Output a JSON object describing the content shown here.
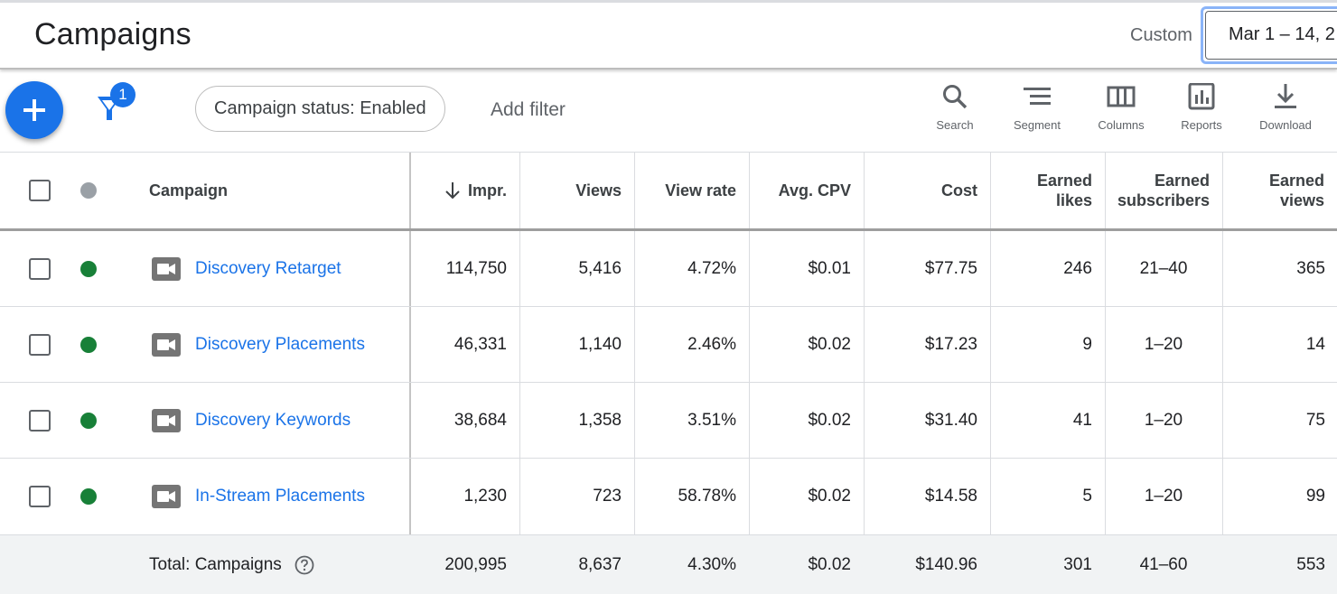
{
  "header": {
    "title": "Campaigns",
    "date_preset": "Custom",
    "date_range": "Mar 1 – 14, 2"
  },
  "toolbar": {
    "filter_count": "1",
    "chip_label": "Campaign status: Enabled",
    "add_filter": "Add filter",
    "tools": [
      {
        "label": "Search",
        "icon": "search-icon"
      },
      {
        "label": "Segment",
        "icon": "segment-icon"
      },
      {
        "label": "Columns",
        "icon": "columns-icon"
      },
      {
        "label": "Reports",
        "icon": "reports-icon"
      },
      {
        "label": "Download",
        "icon": "download-icon"
      }
    ]
  },
  "table": {
    "headers": {
      "campaign": "Campaign",
      "impr": "Impr.",
      "views": "Views",
      "view_rate": "View rate",
      "avg_cpv": "Avg. CPV",
      "cost": "Cost",
      "earned_likes_1": "Earned",
      "earned_likes_2": "likes",
      "earned_subs_1": "Earned",
      "earned_subs_2": "subscribers",
      "earned_views_1": "Earned",
      "earned_views_2": "views"
    },
    "rows": [
      {
        "name": "Discovery Retarget",
        "impr": "114,750",
        "views": "5,416",
        "view_rate": "4.72%",
        "avg_cpv": "$0.01",
        "cost": "$77.75",
        "likes": "246",
        "subs": "21–40",
        "earned_views": "365"
      },
      {
        "name": "Discovery Placements",
        "impr": "46,331",
        "views": "1,140",
        "view_rate": "2.46%",
        "avg_cpv": "$0.02",
        "cost": "$17.23",
        "likes": "9",
        "subs": "1–20",
        "earned_views": "14"
      },
      {
        "name": "Discovery Keywords",
        "impr": "38,684",
        "views": "1,358",
        "view_rate": "3.51%",
        "avg_cpv": "$0.02",
        "cost": "$31.40",
        "likes": "41",
        "subs": "1–20",
        "earned_views": "75"
      },
      {
        "name": "In-Stream Placements",
        "impr": "1,230",
        "views": "723",
        "view_rate": "58.78%",
        "avg_cpv": "$0.02",
        "cost": "$14.58",
        "likes": "5",
        "subs": "1–20",
        "earned_views": "99"
      }
    ],
    "total": {
      "label": "Total: Campaigns",
      "impr": "200,995",
      "views": "8,637",
      "view_rate": "4.30%",
      "avg_cpv": "$0.02",
      "cost": "$140.96",
      "likes": "301",
      "subs": "41–60",
      "earned_views": "553"
    }
  },
  "colors": {
    "accent": "#1a73e8",
    "status_enabled": "#188038",
    "status_header": "#9aa0a6"
  }
}
